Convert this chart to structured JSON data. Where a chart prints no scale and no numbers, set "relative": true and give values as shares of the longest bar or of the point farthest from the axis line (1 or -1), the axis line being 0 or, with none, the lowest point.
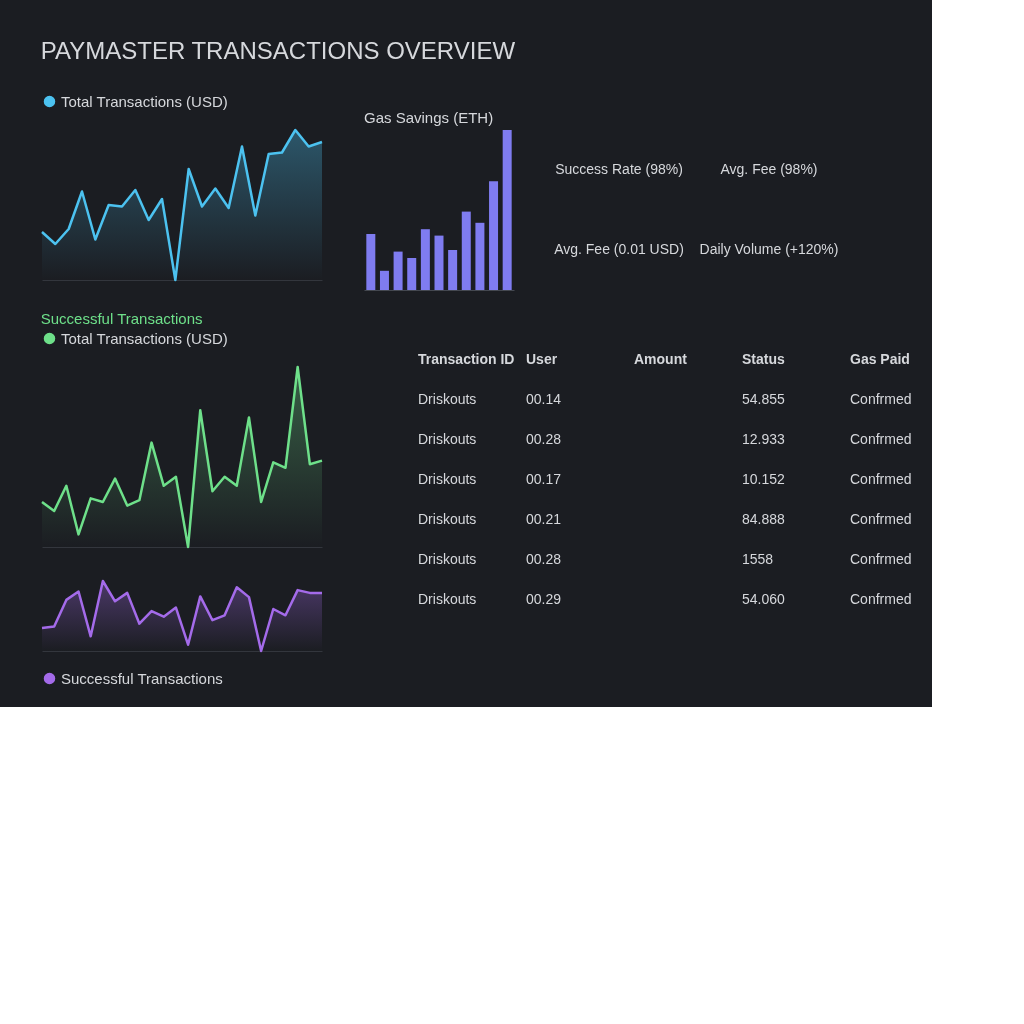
{
  "chart_data": [
    {
      "type": "area",
      "title": "PAYMASTER TRANSACTIONS OVERVIEW",
      "relative": true,
      "legend": "top left",
      "categories": [
        null,
        null,
        null,
        null,
        null,
        null,
        null,
        null,
        null,
        null,
        null,
        null,
        null,
        null,
        null,
        null,
        null,
        null,
        null,
        null,
        null,
        null
      ],
      "series": [
        {
          "name": "Total Transactions (USD)",
          "color": "#4cc2f0",
          "values": [
            0.32,
            0.24,
            0.34,
            0.59,
            0.27,
            0.5,
            0.49,
            0.6,
            0.4,
            0.54,
            0,
            0.74,
            0.49,
            0.61,
            0.48,
            0.89,
            0.43,
            0.84,
            0.85,
            1,
            0.89,
            0.92
          ]
        }
      ]
    },
    {
      "type": "area",
      "relative": true,
      "legend": "top left",
      "annotations": [
        "Successful Transactions"
      ],
      "categories": [
        null,
        null,
        null,
        null,
        null,
        null,
        null,
        null,
        null,
        null,
        null,
        null,
        null,
        null,
        null,
        null,
        null,
        null,
        null,
        null,
        null,
        null,
        null,
        null
      ],
      "series": [
        {
          "name": "Total Transactions (USD)",
          "color": "#6ee08a",
          "values": [
            0.25,
            0.2,
            0.34,
            0.07,
            0.27,
            0.25,
            0.38,
            0.23,
            0.26,
            0.58,
            0.34,
            0.39,
            0,
            0.76,
            0.31,
            0.39,
            0.34,
            0.72,
            0.25,
            0.47,
            0.44,
            1,
            0.46,
            0.48
          ]
        }
      ]
    },
    {
      "type": "area",
      "relative": true,
      "legend": "bottom left",
      "categories": [
        null,
        null,
        null,
        null,
        null,
        null,
        null,
        null,
        null,
        null,
        null,
        null,
        null,
        null,
        null,
        null,
        null,
        null,
        null,
        null,
        null,
        null,
        null,
        null
      ],
      "series": [
        {
          "name": "Successful Transactions",
          "color": "#a46bea",
          "values": [
            0.33,
            0.35,
            0.73,
            0.85,
            0.21,
            1,
            0.71,
            0.83,
            0.39,
            0.57,
            0.49,
            0.62,
            0.09,
            0.78,
            0.44,
            0.51,
            0.91,
            0.77,
            0,
            0.6,
            0.51,
            0.87,
            0.83,
            0.83
          ]
        }
      ]
    },
    {
      "type": "bar",
      "title": "Gas Savings (ETH)",
      "relative": true,
      "color": "#7f7cf0",
      "categories": [
        null,
        null,
        null,
        null,
        null,
        null,
        null,
        null,
        null,
        null,
        null
      ],
      "values": [
        0.35,
        0.12,
        0.24,
        0.2,
        0.38,
        0.34,
        0.25,
        0.49,
        0.42,
        0.68,
        1
      ]
    },
    {
      "type": "other",
      "annotations": [
        "Success Rate (98%)",
        "Avg. Fee (98%)",
        "Avg. Fee (0.01 USD)",
        "Daily Volume (+120%)"
      ]
    },
    {
      "type": "other",
      "categories": [
        "Transaction ID",
        "User",
        "Amount",
        "Status",
        "Gas Paid"
      ],
      "cell_labels": [
        [
          "Driskouts",
          "00.14",
          null,
          "54.855",
          "Confrmed"
        ],
        [
          "Driskouts",
          "00.28",
          null,
          "12.933",
          "Confrmed"
        ],
        [
          "Driskouts",
          "00.17",
          null,
          "10.152",
          "Confrmed"
        ],
        [
          "Driskouts",
          "00.21",
          null,
          "84.888",
          "Confrmed"
        ],
        [
          "Driskouts",
          "00.28",
          null,
          "1558",
          "Confrmed"
        ],
        [
          "Driskouts",
          "00.29",
          null,
          "54.060",
          "Confrmed"
        ]
      ]
    }
  ]
}
